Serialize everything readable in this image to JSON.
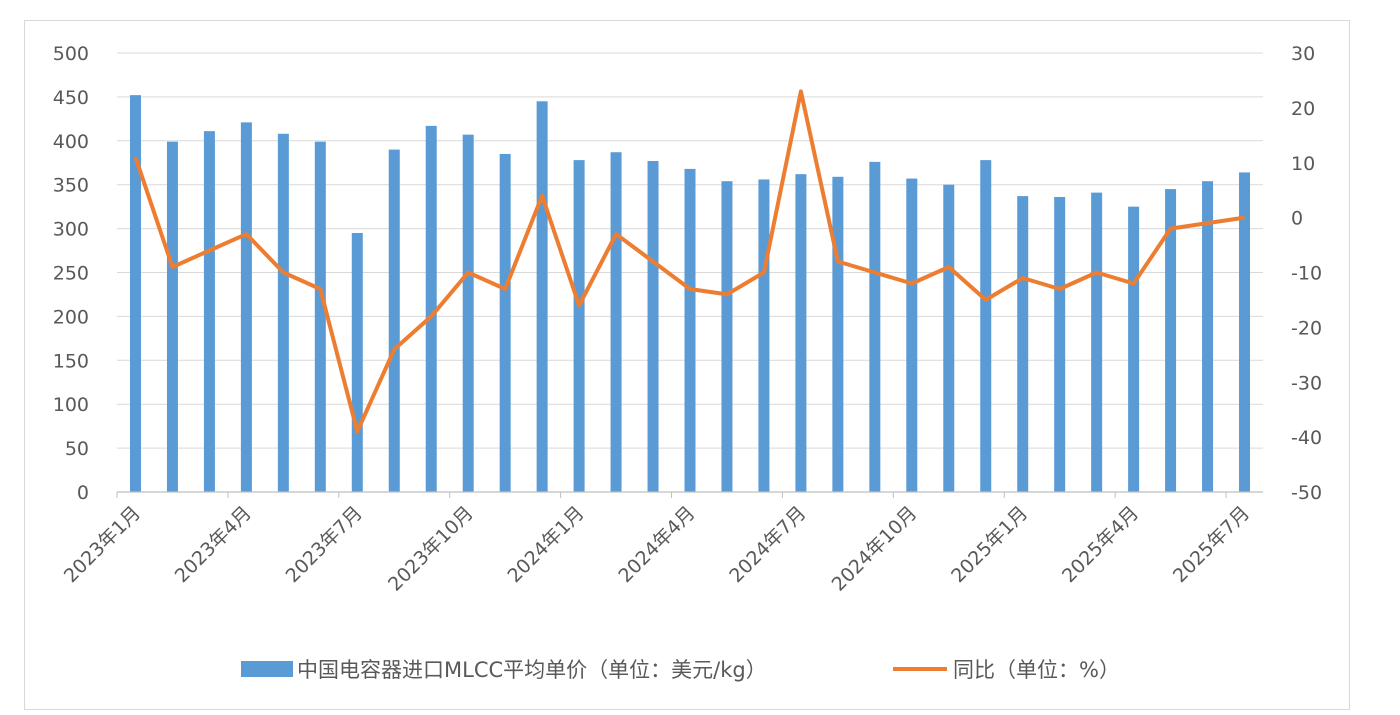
{
  "chart_data": {
    "type": "bar+line",
    "title": "",
    "x": [
      "2023年1月",
      "2023年2月",
      "2023年3月",
      "2023年4月",
      "2023年5月",
      "2023年6月",
      "2023年7月",
      "2023年8月",
      "2023年9月",
      "2023年10月",
      "2023年11月",
      "2023年12月",
      "2024年1月",
      "2024年2月",
      "2024年3月",
      "2024年4月",
      "2024年5月",
      "2024年6月",
      "2024年7月",
      "2024年8月",
      "2024年9月",
      "2024年10月",
      "2024年11月",
      "2024年12月",
      "2025年1月",
      "2025年2月",
      "2025年3月",
      "2025年4月",
      "2025年5月",
      "2025年6月",
      "2025年7月"
    ],
    "x_tick_labels": [
      "2023年1月",
      "2023年4月",
      "2023年7月",
      "2023年10月",
      "2024年1月",
      "2024年4月",
      "2024年7月",
      "2024年10月",
      "2025年1月",
      "2025年4月",
      "2025年7月"
    ],
    "series": [
      {
        "name": "中国电容器进口MLCC平均单价（单位：美元/kg）",
        "type": "bar",
        "axis": "left",
        "color": "#5b9bd5",
        "values": [
          452,
          399,
          411,
          421,
          408,
          399,
          295,
          390,
          417,
          407,
          385,
          445,
          378,
          387,
          377,
          368,
          354,
          356,
          362,
          359,
          376,
          357,
          350,
          378,
          337,
          336,
          341,
          325,
          345,
          354,
          364
        ]
      },
      {
        "name": "同比（单位：%）",
        "type": "line",
        "axis": "right",
        "color": "#ed7d31",
        "values": [
          11,
          -9,
          -6,
          -3,
          -10,
          -13,
          -39,
          -24,
          -18,
          -10,
          -13,
          4,
          -16,
          -3,
          -8,
          -13,
          -14,
          -10,
          23,
          -8,
          -10,
          -12,
          -9,
          -15,
          -11,
          -13,
          -10,
          -12,
          -2,
          -1,
          0
        ]
      }
    ],
    "y_left": {
      "min": 0,
      "max": 500,
      "step": 50,
      "ticks": [
        "0",
        "50",
        "100",
        "150",
        "200",
        "250",
        "300",
        "350",
        "400",
        "450",
        "500"
      ]
    },
    "y_right": {
      "min": -50,
      "max": 30,
      "step": 10,
      "ticks": [
        "-50",
        "-40",
        "-30",
        "-20",
        "-10",
        "0",
        "10",
        "20",
        "30"
      ]
    },
    "grid": true,
    "legend_position": "bottom"
  }
}
